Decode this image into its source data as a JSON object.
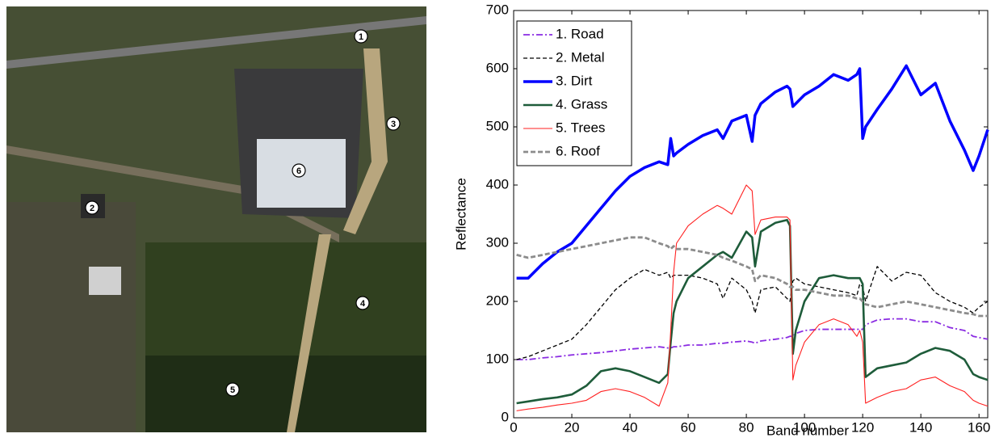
{
  "image": {
    "markers": [
      "1",
      "2",
      "3",
      "4",
      "5",
      "6"
    ]
  },
  "chart_data": {
    "type": "line",
    "x_label": "Band number",
    "y_label": "Reflectance",
    "x": [
      1,
      5,
      10,
      15,
      20,
      25,
      30,
      35,
      40,
      45,
      50,
      53,
      54,
      55,
      56,
      60,
      65,
      70,
      72,
      75,
      80,
      82,
      83,
      85,
      90,
      94,
      95,
      96,
      97,
      100,
      105,
      110,
      115,
      118,
      119,
      120,
      121,
      125,
      130,
      135,
      140,
      145,
      150,
      155,
      158,
      160,
      163
    ],
    "series": [
      {
        "name": "1. Road",
        "color": "#8a2be2",
        "values": [
          100,
          100,
          103,
          105,
          108,
          110,
          112,
          115,
          118,
          120,
          122,
          120,
          120,
          122,
          122,
          125,
          125,
          128,
          128,
          130,
          132,
          130,
          128,
          132,
          135,
          138,
          140,
          140,
          145,
          150,
          152,
          152,
          152,
          152,
          152,
          152,
          160,
          168,
          170,
          170,
          165,
          165,
          155,
          150,
          140,
          138,
          135
        ]
      },
      {
        "name": "2. Metal",
        "color": "#000000",
        "values": [
          100,
          105,
          115,
          125,
          135,
          160,
          190,
          220,
          240,
          255,
          245,
          250,
          240,
          245,
          245,
          245,
          240,
          230,
          205,
          240,
          220,
          200,
          180,
          220,
          225,
          205,
          200,
          235,
          240,
          230,
          225,
          220,
          215,
          210,
          230,
          225,
          200,
          260,
          235,
          250,
          245,
          215,
          200,
          190,
          180,
          190,
          200
        ]
      },
      {
        "name": "3. Dirt",
        "color": "#0000ff",
        "values": [
          240,
          240,
          265,
          285,
          300,
          330,
          360,
          390,
          415,
          430,
          440,
          435,
          480,
          450,
          455,
          470,
          485,
          495,
          480,
          510,
          520,
          475,
          520,
          540,
          560,
          570,
          565,
          535,
          540,
          555,
          570,
          590,
          580,
          590,
          600,
          480,
          500,
          530,
          565,
          605,
          555,
          575,
          510,
          460,
          425,
          450,
          495
        ]
      },
      {
        "name": "4. Grass",
        "color": "#1e5c3a",
        "values": [
          25,
          28,
          32,
          35,
          40,
          55,
          80,
          85,
          80,
          70,
          60,
          75,
          130,
          180,
          200,
          240,
          260,
          280,
          285,
          275,
          320,
          310,
          260,
          320,
          335,
          340,
          330,
          110,
          150,
          200,
          240,
          245,
          240,
          240,
          240,
          230,
          70,
          85,
          90,
          95,
          110,
          120,
          115,
          100,
          75,
          70,
          65
        ]
      },
      {
        "name": "5. Trees",
        "color": "#ff2020",
        "values": [
          12,
          15,
          18,
          22,
          25,
          30,
          45,
          50,
          45,
          35,
          20,
          60,
          150,
          250,
          300,
          330,
          350,
          365,
          360,
          350,
          400,
          390,
          315,
          340,
          345,
          345,
          340,
          65,
          90,
          130,
          160,
          170,
          160,
          140,
          150,
          130,
          25,
          35,
          45,
          50,
          65,
          70,
          55,
          45,
          30,
          25,
          20
        ]
      },
      {
        "name": "6. Roof",
        "color": "#8c8c8c",
        "values": [
          280,
          275,
          280,
          285,
          290,
          295,
          300,
          305,
          310,
          310,
          300,
          295,
          290,
          295,
          290,
          290,
          285,
          280,
          275,
          270,
          260,
          255,
          235,
          245,
          240,
          230,
          225,
          225,
          220,
          220,
          215,
          210,
          210,
          205,
          205,
          200,
          195,
          190,
          195,
          200,
          195,
          190,
          185,
          180,
          178,
          175,
          175
        ]
      }
    ],
    "xlim": [
      0,
      163
    ],
    "ylim": [
      0,
      700
    ],
    "xticks": [
      0,
      20,
      40,
      60,
      80,
      100,
      120,
      140,
      160
    ],
    "yticks": [
      0,
      100,
      200,
      300,
      400,
      500,
      600,
      700
    ],
    "legend": "upper left"
  }
}
